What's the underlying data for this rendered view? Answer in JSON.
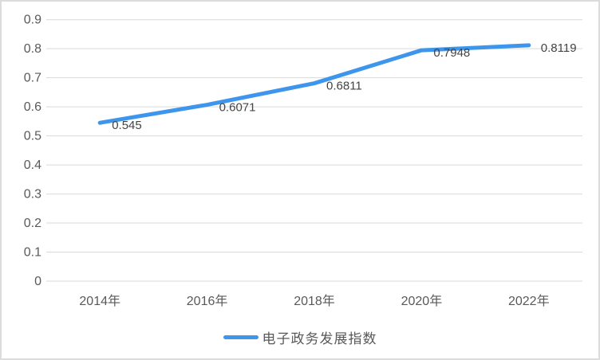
{
  "chart_data": {
    "type": "line",
    "title": "",
    "categories": [
      "2014年",
      "2016年",
      "2018年",
      "2020年",
      "2022年"
    ],
    "series": [
      {
        "name": "电子政务发展指数",
        "values": [
          0.545,
          0.6071,
          0.6811,
          0.7948,
          0.8119
        ],
        "point_labels": [
          "0.545",
          "0.6071",
          "0.6811",
          "0.7948",
          "0.8119"
        ],
        "color": "#3E96EC"
      }
    ],
    "xlabel": "",
    "ylabel": "",
    "ylim": [
      0,
      0.9
    ],
    "ytick_step": 0.1,
    "ytick_labels": [
      "0",
      "0.1",
      "0.2",
      "0.3",
      "0.4",
      "0.5",
      "0.6",
      "0.7",
      "0.8",
      "0.9"
    ],
    "grid": true,
    "legend_position": "bottom"
  },
  "colors": {
    "line": "#3E96EC",
    "gridline": "#D9D9D9",
    "axis_text": "#595959",
    "data_label_text": "#444444",
    "frame_border": "#DCDCDC",
    "background": "#FFFFFF"
  }
}
